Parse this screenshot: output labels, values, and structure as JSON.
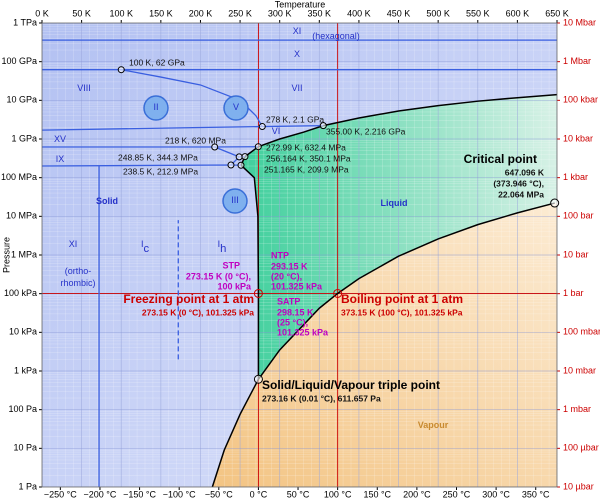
{
  "chart_data": {
    "type": "phase-diagram",
    "x_title": "Temperature",
    "y_title": "Pressure",
    "xlim": [
      0,
      650
    ],
    "xticks": [
      {
        "value": 0,
        "label": "0 K"
      },
      {
        "value": 50,
        "label": "50 K"
      },
      {
        "value": 100,
        "label": "100 K"
      },
      {
        "value": 150,
        "label": "150 K"
      },
      {
        "value": 200,
        "label": "200 K"
      },
      {
        "value": 250,
        "label": "250 K"
      },
      {
        "value": 300,
        "label": "300 K"
      },
      {
        "value": 350,
        "label": "350 K"
      },
      {
        "value": 400,
        "label": "400 K"
      },
      {
        "value": 450,
        "label": "450 K"
      },
      {
        "value": 500,
        "label": "500 K"
      },
      {
        "value": 550,
        "label": "550 K"
      },
      {
        "value": 600,
        "label": "600 K"
      },
      {
        "value": 650,
        "label": "650 K"
      }
    ],
    "x2lim": [
      -273.15,
      376.85
    ],
    "x2ticks": [
      {
        "value": -250,
        "label": "−250 °C"
      },
      {
        "value": -200,
        "label": "−200 °C"
      },
      {
        "value": -150,
        "label": "−150 °C"
      },
      {
        "value": -100,
        "label": "−100 °C"
      },
      {
        "value": -50,
        "label": "−50 °C"
      },
      {
        "value": 0,
        "label": "0 °C"
      },
      {
        "value": 50,
        "label": "50 °C"
      },
      {
        "value": 100,
        "label": "100 °C"
      },
      {
        "value": 150,
        "label": "150 °C"
      },
      {
        "value": 200,
        "label": "200 °C"
      },
      {
        "value": 250,
        "label": "250 °C"
      },
      {
        "value": 300,
        "label": "300 °C"
      },
      {
        "value": 350,
        "label": "350 °C"
      }
    ],
    "ylim": [
      1,
      1000000000000.0
    ],
    "ylog": true,
    "yticks": [
      {
        "value": 1000000000000.0,
        "label": "1 TPa"
      },
      {
        "value": 100000000000.0,
        "label": "100 GPa"
      },
      {
        "value": 10000000000.0,
        "label": "10 GPa"
      },
      {
        "value": 1000000000.0,
        "label": "1 GPa"
      },
      {
        "value": 100000000.0,
        "label": "100 MPa"
      },
      {
        "value": 10000000.0,
        "label": "10 MPa"
      },
      {
        "value": 1000000.0,
        "label": "1 MPa"
      },
      {
        "value": 100000.0,
        "label": "100 kPa"
      },
      {
        "value": 10000.0,
        "label": "10 kPa"
      },
      {
        "value": 1000.0,
        "label": "1 kPa"
      },
      {
        "value": 100,
        "label": "100 Pa"
      },
      {
        "value": 10,
        "label": "10 Pa"
      },
      {
        "value": 1,
        "label": "1 Pa"
      }
    ],
    "y2lim": [
      1e-05,
      10000000
    ],
    "y2ticks": [
      {
        "value": 10000000,
        "label": "10 Mbar"
      },
      {
        "value": 1000000,
        "label": "1 Mbar"
      },
      {
        "value": 100000,
        "label": "100 kbar"
      },
      {
        "value": 10000,
        "label": "10 kbar"
      },
      {
        "value": 1000,
        "label": "1 kbar"
      },
      {
        "value": 100,
        "label": "100 bar"
      },
      {
        "value": 10,
        "label": "10 bar"
      },
      {
        "value": 1,
        "label": "1 bar"
      },
      {
        "value": 0.1,
        "label": "100 mbar"
      },
      {
        "value": 0.01,
        "label": "10 mbar"
      },
      {
        "value": 0.001,
        "label": "1 mbar"
      },
      {
        "value": 0.0001,
        "label": "100 µbar"
      },
      {
        "value": 1e-05,
        "label": "10 µbar"
      }
    ],
    "grid": true,
    "boundaries": [
      {
        "color": "#000000",
        "x": [
          215,
          230,
          250,
          273.16
        ],
        "y": [
          1,
          9,
          76,
          611.657
        ]
      },
      {
        "color": "#000000",
        "x": [
          273.16,
          300,
          350,
          373.15,
          400,
          450,
          500,
          550,
          600,
          647.096
        ],
        "y": [
          611.657,
          3500,
          42000,
          101325,
          245000,
          930000,
          2600000,
          6100000,
          12300000,
          22064000
        ]
      },
      {
        "color": "#000000",
        "x": [
          273.16,
          273.15,
          272.5,
          268,
          251.165
        ],
        "y": [
          611.657,
          101325,
          10000000,
          100000000,
          209900000
        ]
      },
      {
        "color": "#000000",
        "x": [
          251.165,
          256.164
        ],
        "y": [
          209900000,
          350100000
        ]
      },
      {
        "color": "#000000",
        "x": [
          256.164,
          272.99
        ],
        "y": [
          350100000,
          632400000
        ]
      },
      {
        "color": "#000000",
        "x": [
          272.99,
          300,
          330,
          355
        ],
        "y": [
          632400000,
          1000000000,
          1500000000,
          2216000000
        ]
      },
      {
        "color": "#000000",
        "x": [
          355,
          400,
          450,
          500,
          550,
          600,
          650
        ],
        "y": [
          2216000000,
          3500000000,
          5300000000,
          7300000000,
          9500000000,
          11700000000,
          14000000000
        ]
      },
      {
        "color": "#3a5fe0",
        "x": [
          0,
          650
        ],
        "y": [
          360000000000,
          360000000000
        ]
      },
      {
        "color": "#3a5fe0",
        "x": [
          0,
          650
        ],
        "y": [
          62000000000,
          62000000000
        ]
      },
      {
        "color": "#3a5fe0",
        "x": [
          100,
          150,
          200,
          250,
          270,
          278
        ],
        "y": [
          62000000000,
          40000000000,
          25000000000,
          10000000000,
          4000000000,
          2100000000
        ]
      },
      {
        "color": "#3a5fe0",
        "x": [
          278,
          355
        ],
        "y": [
          2100000000,
          2216000000
        ]
      },
      {
        "color": "#3a5fe0",
        "x": [
          0,
          278
        ],
        "y": [
          1700000000,
          2100000000
        ]
      },
      {
        "color": "#3a5fe0",
        "x": [
          0,
          218,
          272.99
        ],
        "y": [
          620000000,
          620000000,
          632400000
        ]
      },
      {
        "color": "#3a5fe0",
        "x": [
          218,
          248.85
        ],
        "y": [
          620000000,
          344300000
        ]
      },
      {
        "color": "#3a5fe0",
        "x": [
          248.85,
          256.164
        ],
        "y": [
          344300000,
          350100000
        ]
      },
      {
        "color": "#3a5fe0",
        "x": [
          0,
          238.5,
          251.165
        ],
        "y": [
          200000000,
          212900000,
          209900000
        ]
      },
      {
        "color": "#3a5fe0",
        "x": [
          238.5,
          248.85
        ],
        "y": [
          212900000,
          344300000
        ]
      },
      {
        "color": "#3a5fe0",
        "x": [
          72,
          72
        ],
        "y": [
          1,
          200000000
        ]
      },
      {
        "color": "#3a5fe0",
        "dash": true,
        "x": [
          172,
          172
        ],
        "y": [
          2000,
          8000000
        ]
      }
    ],
    "reference_lines": {
      "color": "#cc0000",
      "x": [
        273.15,
        373.15
      ],
      "y": [
        101325
      ]
    },
    "points": [
      {
        "x": 100,
        "y": 62000000000,
        "label": "100 K, 62 GPa"
      },
      {
        "x": 278,
        "y": 2100000000,
        "label": "278 K, 2.1 GPa"
      },
      {
        "x": 355,
        "y": 2216000000,
        "label": "355.00 K, 2.216 GPa"
      },
      {
        "x": 218,
        "y": 620000000,
        "label": "218 K, 620 MPa"
      },
      {
        "x": 272.99,
        "y": 632400000,
        "label": "272.99 K, 632.4 MPa"
      },
      {
        "x": 248.85,
        "y": 344300000,
        "label": "248.85 K, 344.3 MPa"
      },
      {
        "x": 256.164,
        "y": 350100000,
        "label": "256.164 K, 350.1 MPa"
      },
      {
        "x": 251.165,
        "y": 209900000,
        "label": "251.165 K, 209.9 MPa"
      },
      {
        "x": 238.5,
        "y": 212900000,
        "label": "238.5 K, 212.9 MPa"
      },
      {
        "x": 647.096,
        "y": 22064000,
        "title": "Critical point",
        "lines": [
          "647.096 K",
          "(373.946 °C),",
          "22.064 MPa"
        ]
      },
      {
        "x": 273.16,
        "y": 611.657,
        "title": "Solid/Liquid/Vapour triple point",
        "lines": [
          "273.16 K (0.01 °C), 611.657 Pa"
        ]
      },
      {
        "x": 273.15,
        "y": 101325,
        "title": "Freezing point at 1 atm",
        "lines": [
          "273.15 K (0 °C), 101.325 kPa"
        ]
      },
      {
        "x": 373.15,
        "y": 101325,
        "title": "Boiling point at 1 atm",
        "lines": [
          "373.15 K (100 °C), 101.325 kPa"
        ]
      }
    ],
    "notes": [
      {
        "title": "STP",
        "lines": [
          "273.15 K (0 °C),",
          "100 kPa"
        ]
      },
      {
        "title": "NTP",
        "lines": [
          "293.15 K",
          "(20 °C),",
          "101.325 kPa"
        ]
      },
      {
        "title": "SATP",
        "lines": [
          "298.15 K",
          "(25 °C),",
          "101.325 kPa"
        ]
      }
    ],
    "region_labels": [
      {
        "text": "XI"
      },
      {
        "text": "(hexagonal)"
      },
      {
        "text": "X"
      },
      {
        "text": "VIII"
      },
      {
        "text": "VII"
      },
      {
        "text": "VI"
      },
      {
        "text": "XV"
      },
      {
        "text": "IX"
      },
      {
        "text": "II"
      },
      {
        "text": "V"
      },
      {
        "text": "III"
      },
      {
        "text": "Solid"
      },
      {
        "text": "Liquid"
      },
      {
        "text": "Vapour"
      },
      {
        "text": "XI"
      },
      {
        "text": "I",
        "sub": "c"
      },
      {
        "text": "I",
        "sub": "h"
      },
      {
        "text": "(ortho-"
      },
      {
        "text": "rhombic)"
      }
    ]
  }
}
